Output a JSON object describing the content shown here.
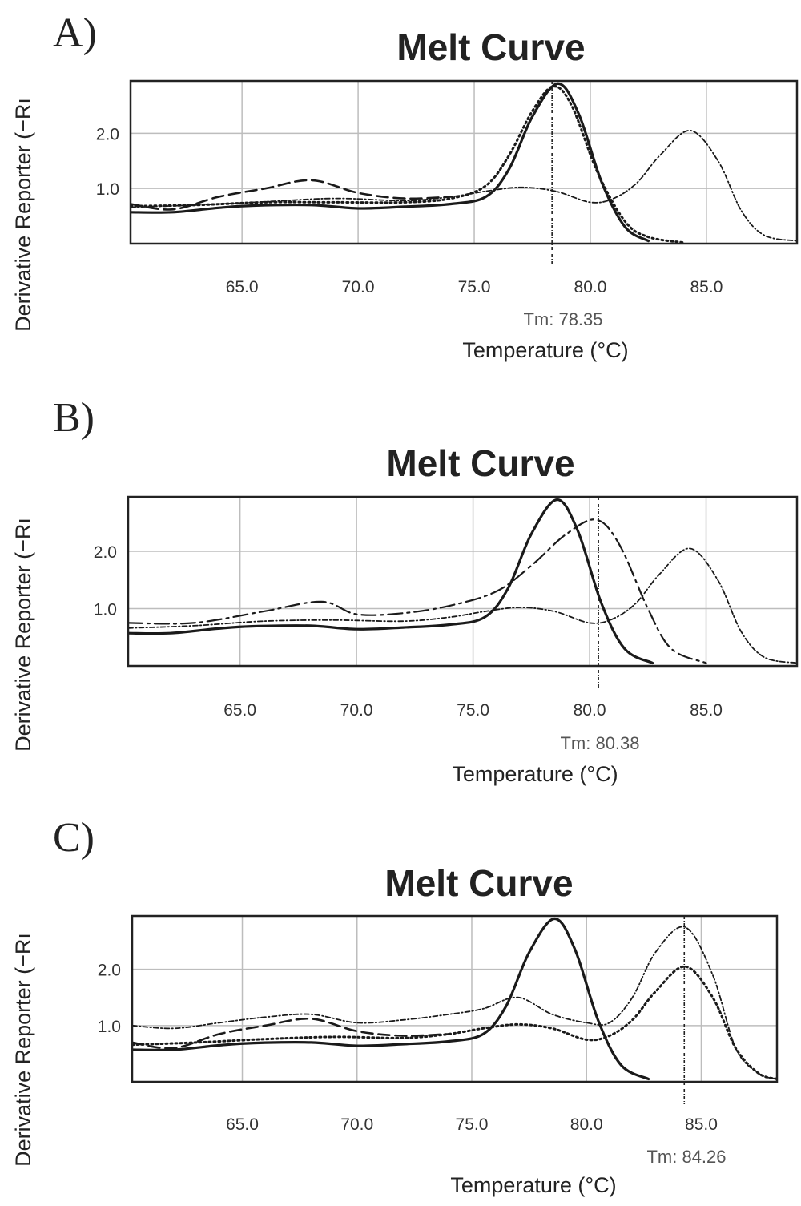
{
  "chart_data": [
    {
      "type": "line",
      "panel_label": "A)",
      "title": "Melt Curve",
      "xlabel": "Temperature (°C)",
      "ylabel": "Derivative Reporter (−Rı",
      "x_ticks": [
        "65.0",
        "70.0",
        "75.0",
        "80.0",
        "85.0"
      ],
      "y_ticks": [
        "1.0",
        "2.0"
      ],
      "xlim": [
        60.2,
        88.9
      ],
      "ylim": [
        0,
        2.95
      ],
      "grid": true,
      "tm_label": "Tm: 78.35",
      "tm_value": 78.35,
      "series": [
        {
          "style": "solid",
          "x": [
            60.2,
            62,
            64,
            65.5,
            68,
            70,
            72,
            74,
            75.5,
            76.5,
            77.5,
            78.6,
            79.5,
            80.5,
            81.5,
            82.5
          ],
          "y": [
            0.57,
            0.57,
            0.65,
            0.69,
            0.7,
            0.64,
            0.67,
            0.72,
            0.85,
            1.35,
            2.3,
            2.9,
            2.35,
            1.1,
            0.3,
            0.05
          ]
        },
        {
          "style": "dotted",
          "x": [
            60.2,
            63,
            66,
            69,
            72,
            74,
            75.5,
            76.5,
            77.5,
            78.4,
            79.2,
            80.3,
            81.5,
            82.5,
            84
          ],
          "y": [
            0.68,
            0.7,
            0.75,
            0.75,
            0.75,
            0.82,
            1.05,
            1.6,
            2.4,
            2.85,
            2.5,
            1.3,
            0.4,
            0.12,
            0.02
          ]
        },
        {
          "style": "dashed",
          "x": [
            60.2,
            62,
            64,
            66,
            68,
            70,
            72,
            74
          ],
          "y": [
            0.72,
            0.62,
            0.85,
            1.0,
            1.15,
            0.92,
            0.82,
            0.85
          ]
        },
        {
          "style": "dashdot",
          "x": [
            60.2,
            63,
            66,
            69,
            72,
            74,
            75.5,
            77,
            78.5,
            80,
            81,
            82,
            83,
            84.3,
            85.5,
            86.5,
            87.5,
            88.9
          ],
          "y": [
            0.66,
            0.7,
            0.76,
            0.82,
            0.78,
            0.85,
            0.95,
            1.02,
            0.95,
            0.75,
            0.82,
            1.1,
            1.6,
            2.05,
            1.5,
            0.6,
            0.15,
            0.05
          ]
        }
      ]
    },
    {
      "type": "line",
      "panel_label": "B)",
      "title": "Melt Curve",
      "xlabel": "Temperature (°C)",
      "ylabel": "Derivative Reporter (−Rı",
      "x_ticks": [
        "65.0",
        "70.0",
        "75.0",
        "80.0",
        "85.0"
      ],
      "y_ticks": [
        "1.0",
        "2.0"
      ],
      "xlim": [
        60.2,
        88.9
      ],
      "ylim": [
        0,
        2.95
      ],
      "grid": true,
      "tm_label": "Tm: 80.38",
      "tm_value": 80.38,
      "series": [
        {
          "style": "solid",
          "x": [
            60.2,
            62,
            64,
            65.5,
            68,
            70,
            72,
            74,
            75.5,
            76.5,
            77.5,
            78.6,
            79.5,
            80.5,
            81.5,
            82.7
          ],
          "y": [
            0.57,
            0.57,
            0.65,
            0.69,
            0.7,
            0.64,
            0.67,
            0.72,
            0.85,
            1.35,
            2.3,
            2.9,
            2.35,
            1.1,
            0.3,
            0.05
          ]
        },
        {
          "style": "longdash",
          "x": [
            60.2,
            63,
            66,
            68.5,
            70,
            72,
            74,
            76,
            77.5,
            79,
            80.3,
            81.3,
            82.5,
            83.5,
            85
          ],
          "y": [
            0.75,
            0.75,
            0.95,
            1.12,
            0.9,
            0.92,
            1.05,
            1.3,
            1.75,
            2.3,
            2.55,
            2.1,
            1.0,
            0.3,
            0.05
          ]
        },
        {
          "style": "dashdot",
          "x": [
            60.2,
            63,
            66,
            69,
            72,
            74,
            75.5,
            77,
            78.5,
            80,
            81,
            82,
            83,
            84.3,
            85.5,
            86.5,
            87.5,
            88.9
          ],
          "y": [
            0.66,
            0.7,
            0.78,
            0.8,
            0.78,
            0.85,
            0.95,
            1.02,
            0.95,
            0.75,
            0.82,
            1.1,
            1.6,
            2.05,
            1.5,
            0.6,
            0.15,
            0.05
          ]
        }
      ]
    },
    {
      "type": "line",
      "panel_label": "C)",
      "title": "Melt Curve",
      "xlabel": "Temperature (°C)",
      "ylabel": "Derivative Reporter (−Rı",
      "x_ticks": [
        "65.0",
        "70.0",
        "75.0",
        "80.0",
        "85.0"
      ],
      "y_ticks": [
        "1.0",
        "2.0"
      ],
      "xlim": [
        60.2,
        88.3
      ],
      "ylim": [
        0,
        2.95
      ],
      "grid": true,
      "tm_label": "Tm: 84.26",
      "tm_value": 84.26,
      "series": [
        {
          "style": "solid",
          "x": [
            60.2,
            62,
            64,
            65.5,
            68,
            70,
            72,
            74,
            75.5,
            76.5,
            77.5,
            78.6,
            79.5,
            80.5,
            81.5,
            82.7
          ],
          "y": [
            0.57,
            0.57,
            0.65,
            0.69,
            0.7,
            0.64,
            0.67,
            0.72,
            0.85,
            1.35,
            2.3,
            2.9,
            2.35,
            1.1,
            0.3,
            0.05
          ]
        },
        {
          "style": "dashdot",
          "x": [
            60.2,
            62,
            64,
            66,
            68,
            70,
            72,
            74,
            75.5,
            77,
            78.5,
            80,
            81,
            82,
            83,
            84.3,
            85.5,
            86.5,
            87.5,
            88.3
          ],
          "y": [
            1.0,
            0.95,
            1.05,
            1.15,
            1.2,
            1.05,
            1.1,
            1.2,
            1.3,
            1.5,
            1.2,
            1.05,
            1.05,
            1.5,
            2.3,
            2.75,
            1.9,
            0.6,
            0.15,
            0.05
          ]
        },
        {
          "style": "dashed",
          "x": [
            60.2,
            62,
            64,
            66,
            68,
            70,
            72,
            74
          ],
          "y": [
            0.7,
            0.6,
            0.85,
            1.0,
            1.12,
            0.9,
            0.82,
            0.85
          ]
        },
        {
          "style": "dotted",
          "x": [
            60.2,
            63,
            66,
            69,
            72,
            74,
            75.5,
            77,
            78.5,
            80,
            81,
            82,
            83,
            84.3,
            85.5,
            86.5,
            87.5,
            88.3
          ],
          "y": [
            0.66,
            0.7,
            0.76,
            0.8,
            0.78,
            0.85,
            0.95,
            1.02,
            0.95,
            0.75,
            0.82,
            1.1,
            1.6,
            2.05,
            1.5,
            0.6,
            0.15,
            0.05
          ]
        }
      ]
    }
  ]
}
